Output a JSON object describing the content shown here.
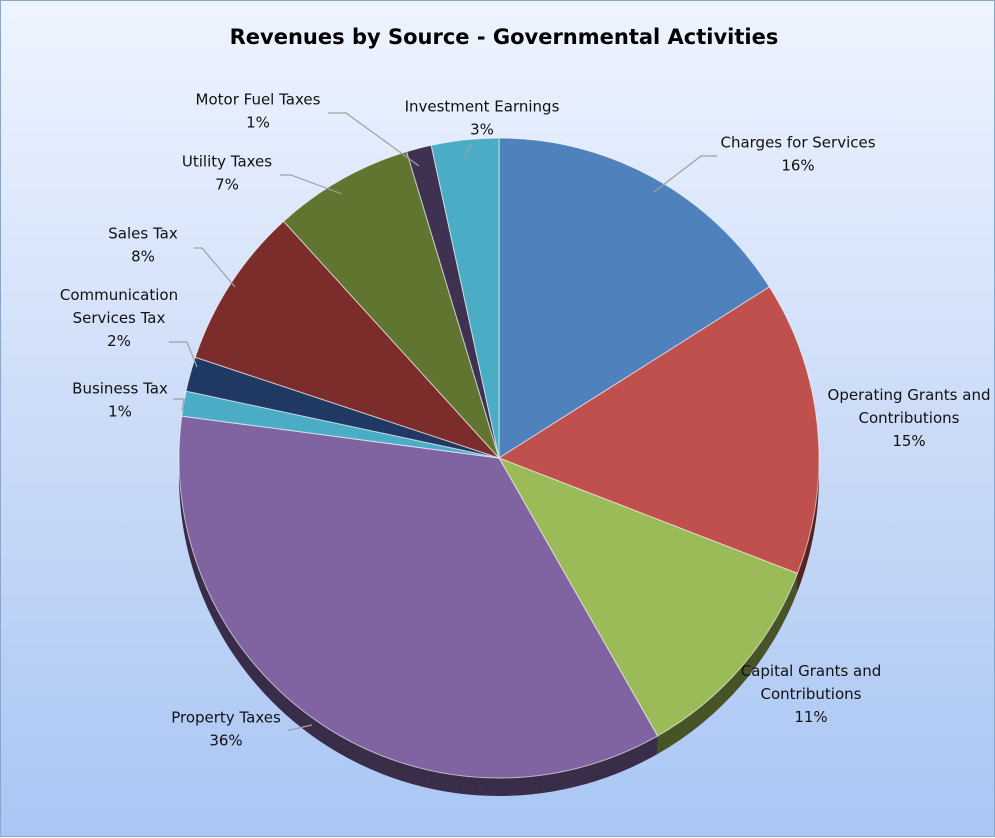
{
  "chart_data": {
    "type": "pie",
    "title": "Revenues by Source - Governmental Activities",
    "slices": [
      {
        "label": [
          "Charges for Services"
        ],
        "percent_label": "16%",
        "value": 16.5,
        "color": "#4f81bd"
      },
      {
        "label": [
          "Operating Grants and",
          "Contributions"
        ],
        "percent_label": "15%",
        "value": 15.3,
        "color": "#c0504d"
      },
      {
        "label": [
          "Capital Grants and",
          "Contributions"
        ],
        "percent_label": "11%",
        "value": 11.2,
        "color": "#9bbb59"
      },
      {
        "label": [
          "Property Taxes"
        ],
        "percent_label": "36%",
        "value": 36.4,
        "color": "#8064a2"
      },
      {
        "label": [
          "Business Tax"
        ],
        "percent_label": "1%",
        "value": 1.3,
        "color": "#4bacc6"
      },
      {
        "label": [
          "Communication",
          "Services Tax"
        ],
        "percent_label": "2%",
        "value": 1.8,
        "color": "#1f3864"
      },
      {
        "label": [
          "Sales Tax"
        ],
        "percent_label": "8%",
        "value": 8.4,
        "color": "#7b2c2b"
      },
      {
        "label": [
          "Utility Taxes"
        ],
        "percent_label": "7%",
        "value": 7.3,
        "color": "#5f7530"
      },
      {
        "label": [
          "Motor Fuel Taxes"
        ],
        "percent_label": "1%",
        "value": 1.3,
        "color": "#3f3151"
      },
      {
        "label": [
          "Investment Earnings"
        ],
        "percent_label": "3%",
        "value": 3.5,
        "color": "#4bacc6"
      }
    ]
  }
}
